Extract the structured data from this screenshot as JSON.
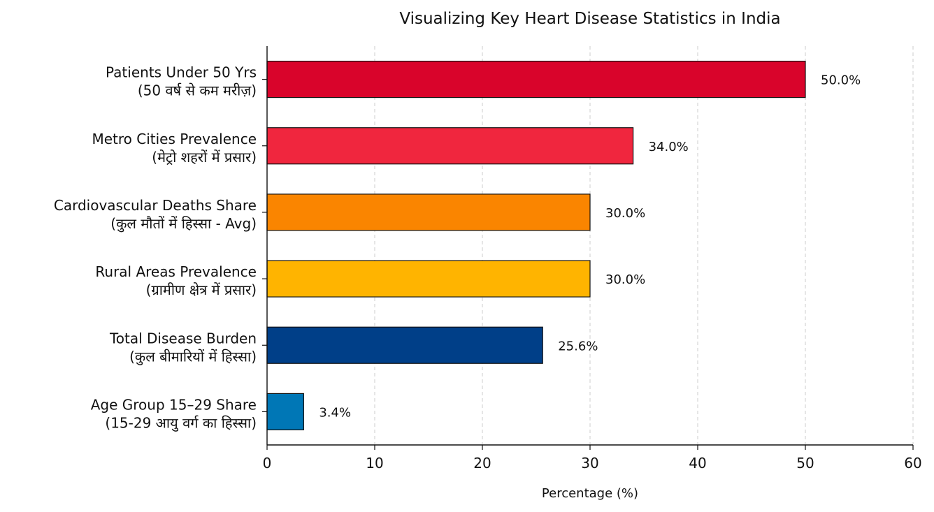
{
  "chart_data": {
    "type": "bar",
    "orientation": "horizontal",
    "title": "Visualizing Key Heart Disease Statistics in India",
    "xlabel": "Percentage (%)",
    "ylabel": "",
    "xlim": [
      0,
      60
    ],
    "x_ticks": [
      "0",
      "10",
      "20",
      "30",
      "40",
      "50",
      "60"
    ],
    "grid": "vertical dashed",
    "categories": [
      {
        "label": "Patients Under 50 Yrs",
        "sublabel": "(50 वर्ष से कम मरीज़)"
      },
      {
        "label": "Metro Cities Prevalence",
        "sublabel": "(मेट्रो शहरों में प्रसार)"
      },
      {
        "label": "Cardiovascular Deaths Share",
        "sublabel": "(कुल मौतों में हिस्सा - Avg)"
      },
      {
        "label": "Rural Areas Prevalence",
        "sublabel": "(ग्रामीण क्षेत्र में प्रसार)"
      },
      {
        "label": "Total Disease Burden",
        "sublabel": "(कुल बीमारियों में हिस्सा)"
      },
      {
        "label": "Age Group 15–29 Share",
        "sublabel": "(15-29 आयु वर्ग का हिस्सा)"
      }
    ],
    "values": [
      50.0,
      34.0,
      30.0,
      30.0,
      25.6,
      3.4
    ],
    "value_labels": [
      "50.0%",
      "34.0%",
      "30.0%",
      "30.0%",
      "25.6%",
      "3.4%"
    ],
    "colors": [
      "#d9042b",
      "#f0263e",
      "#fa8500",
      "#ffb400",
      "#003f88",
      "#0077b6"
    ]
  }
}
